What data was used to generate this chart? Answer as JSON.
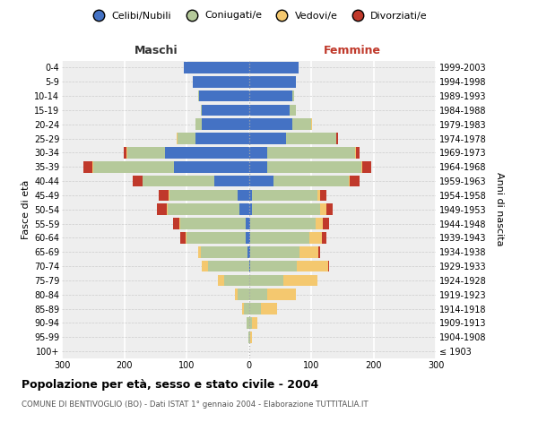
{
  "age_groups": [
    "100+",
    "95-99",
    "90-94",
    "85-89",
    "80-84",
    "75-79",
    "70-74",
    "65-69",
    "60-64",
    "55-59",
    "50-54",
    "45-49",
    "40-44",
    "35-39",
    "30-34",
    "25-29",
    "20-24",
    "15-19",
    "10-14",
    "5-9",
    "0-4"
  ],
  "birth_years": [
    "≤ 1903",
    "1904-1908",
    "1909-1913",
    "1914-1918",
    "1919-1923",
    "1924-1928",
    "1929-1933",
    "1934-1938",
    "1939-1943",
    "1944-1948",
    "1949-1953",
    "1954-1958",
    "1959-1963",
    "1964-1968",
    "1969-1973",
    "1974-1978",
    "1979-1983",
    "1984-1988",
    "1989-1993",
    "1994-1998",
    "1999-2003"
  ],
  "males_celibi": [
    0,
    0,
    0,
    0,
    0,
    0,
    0,
    2,
    5,
    5,
    15,
    18,
    55,
    120,
    135,
    85,
    75,
    75,
    80,
    90,
    105
  ],
  "males_coniugati": [
    0,
    1,
    3,
    8,
    18,
    40,
    65,
    75,
    95,
    105,
    115,
    110,
    115,
    130,
    60,
    30,
    10,
    2,
    1,
    0,
    0
  ],
  "males_vedovi": [
    0,
    0,
    1,
    3,
    5,
    10,
    10,
    5,
    2,
    2,
    2,
    1,
    1,
    1,
    1,
    1,
    1,
    0,
    0,
    0,
    0
  ],
  "males_divorziati": [
    0,
    0,
    0,
    0,
    0,
    0,
    0,
    0,
    8,
    10,
    15,
    15,
    15,
    15,
    5,
    0,
    0,
    0,
    0,
    0,
    0
  ],
  "females_nubili": [
    0,
    0,
    0,
    0,
    0,
    0,
    2,
    2,
    2,
    2,
    5,
    5,
    40,
    30,
    30,
    60,
    70,
    65,
    70,
    75,
    80
  ],
  "females_coniugate": [
    0,
    2,
    5,
    20,
    30,
    55,
    75,
    80,
    95,
    105,
    110,
    105,
    120,
    150,
    140,
    80,
    30,
    10,
    3,
    1,
    0
  ],
  "females_vedove": [
    0,
    3,
    8,
    25,
    45,
    55,
    50,
    30,
    20,
    12,
    10,
    5,
    2,
    2,
    2,
    1,
    1,
    0,
    0,
    0,
    0
  ],
  "females_divorziate": [
    0,
    0,
    0,
    0,
    0,
    0,
    2,
    2,
    8,
    10,
    10,
    10,
    15,
    15,
    5,
    2,
    0,
    0,
    0,
    0,
    0
  ],
  "color_celibi": "#4472c4",
  "color_coniugati": "#b5c99a",
  "color_vedovi": "#f4c86f",
  "color_divorziati": "#c0392b",
  "title": "Popolazione per età, sesso e stato civile - 2004",
  "subtitle": "COMUNE DI BENTIVOGLIO (BO) - Dati ISTAT 1° gennaio 2004 - Elaborazione TUTTITALIA.IT",
  "label_maschi": "Maschi",
  "label_femmine": "Femmine",
  "label_fasce": "Fasce di età",
  "label_anni": "Anni di nascita",
  "legend_labels": [
    "Celibi/Nubili",
    "Coniugati/e",
    "Vedovi/e",
    "Divorziati/e"
  ],
  "xlim": 300,
  "bg_color": "#ffffff",
  "plot_bg": "#eeeeee"
}
